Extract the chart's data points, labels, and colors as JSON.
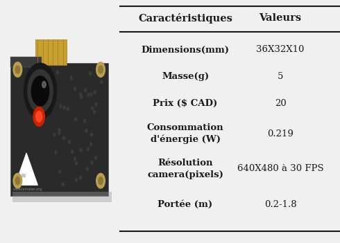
{
  "table_headers": [
    "Caractéristiques",
    "Valeurs"
  ],
  "table_rows": [
    [
      "Dimensions(mm)",
      "36X32X10"
    ],
    [
      "Masse(g)",
      "5"
    ],
    [
      "Prix ($ CAD)",
      "20"
    ],
    [
      "Consommation\nd'énergie (W)",
      "0.219"
    ],
    [
      "Résolution\ncamera(pixels)",
      "640X480 à 30 FPS"
    ],
    [
      "Portée (m)",
      "0.2-1.8"
    ]
  ],
  "header_color": "#1a1a1a",
  "bg_color": "#f0f0f0",
  "line_color": "#1a1a1a",
  "figsize": [
    4.9,
    3.51
  ],
  "dpi": 100,
  "img_bg": "#e8e8e8",
  "pcb_color": "#2a2a2a",
  "pcb_darker": "#1a1a1a",
  "connector_color": "#c8a030",
  "lens_outer": "#181818",
  "lens_inner": "#0a0a0a",
  "lens_ring": "#555555",
  "led_color": "#cc2200",
  "screw_color": "#b8a050",
  "white": "#ffffff",
  "triangle_color": "#ffffff"
}
